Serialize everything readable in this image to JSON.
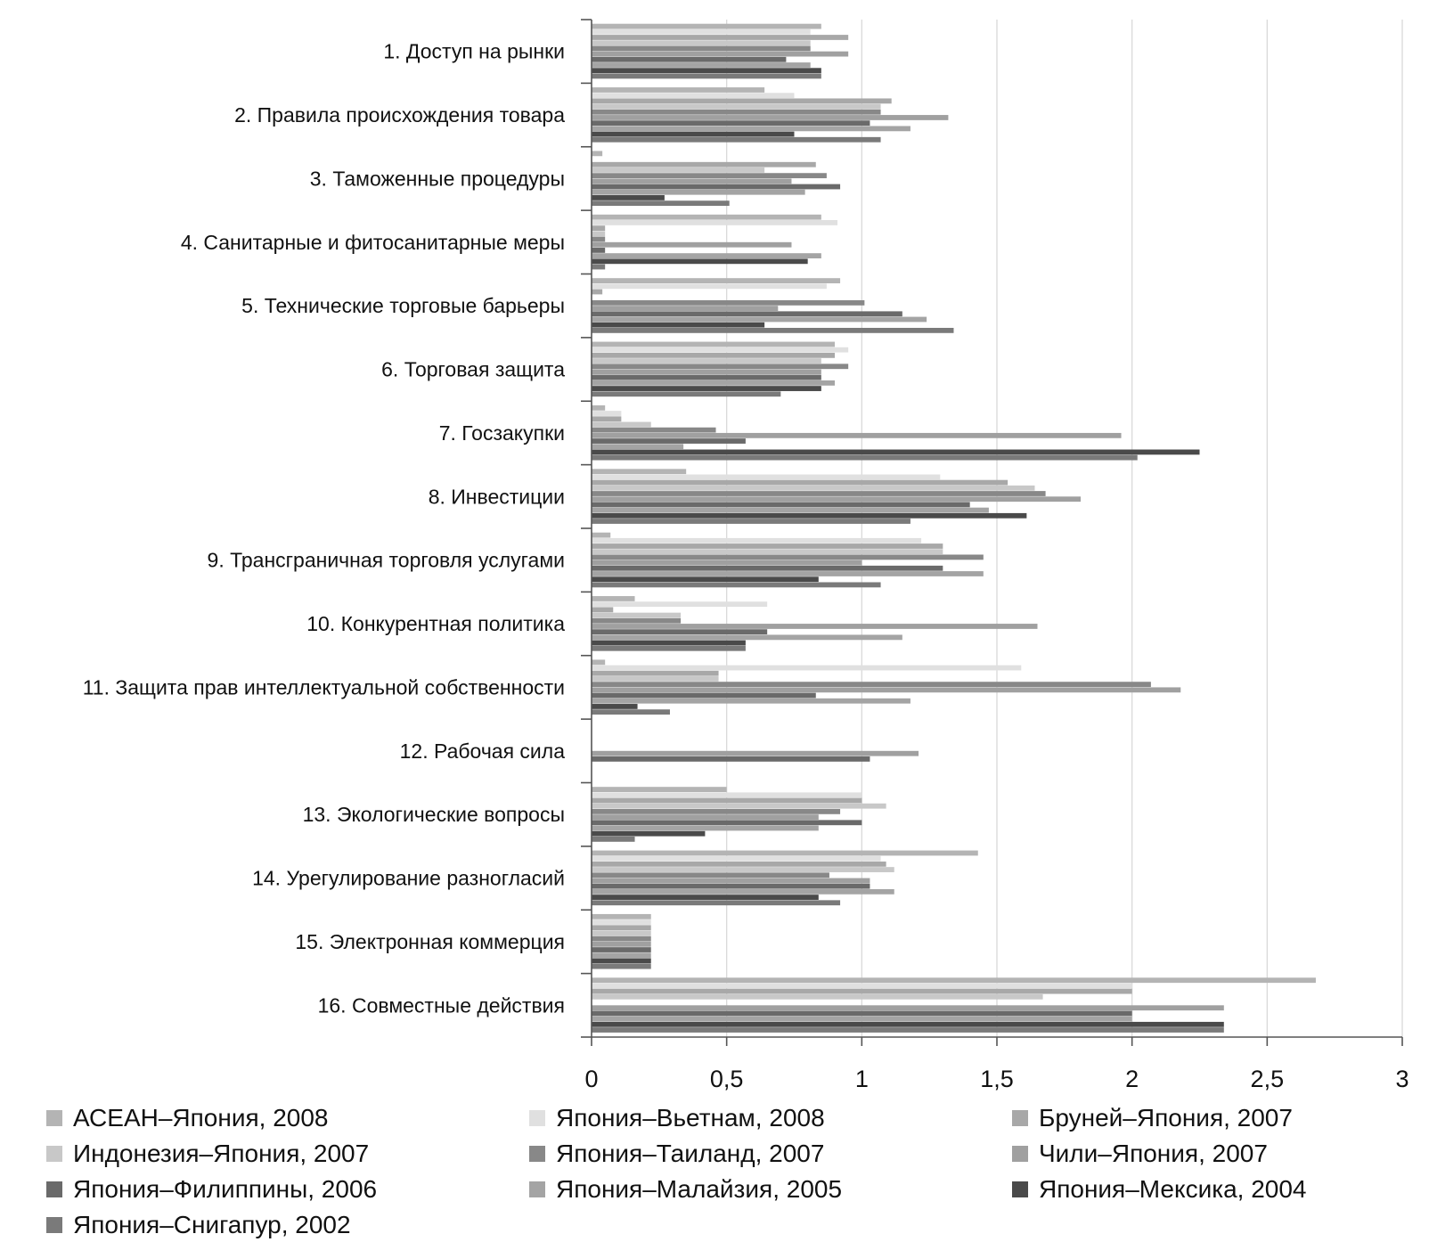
{
  "chart_data": {
    "type": "bar",
    "orientation": "horizontal",
    "title": "",
    "xlabel": "",
    "ylabel": "",
    "xlim": [
      0,
      3
    ],
    "x_ticks": [
      "0",
      "0,5",
      "1",
      "1,5",
      "2",
      "2,5",
      "3"
    ],
    "x_tick_values": [
      0,
      0.5,
      1,
      1.5,
      2,
      2.5,
      3
    ],
    "grid": "vertical",
    "legend_position": "bottom",
    "categories": [
      "1. Доступ на рынки",
      "2. Правила происхождения товара",
      "3. Таможенные процедуры",
      "4. Санитарные и фитосанитарные меры",
      "5. Технические торговые барьеры",
      "6. Торговая защита",
      "7. Госзакупки",
      "8. Инвестиции",
      "9. Трансграничная торговля услугами",
      "10. Конкурентная политика",
      "11. Защита прав интеллектуальной собственности",
      "12. Рабочая сила",
      "13. Экологические вопросы",
      "14. Урегулирование разногласий",
      "15. Электронная коммерция",
      "16. Совместные действия"
    ],
    "series": [
      {
        "name": "АСЕАН–Япония, 2008",
        "color": "#b4b4b4",
        "values": [
          0.85,
          0.64,
          0.04,
          0.85,
          0.92,
          0.9,
          0.05,
          0.35,
          0.07,
          0.16,
          0.05,
          0,
          0.5,
          1.43,
          0.22,
          2.68
        ]
      },
      {
        "name": "Япония–Вьетнам, 2008",
        "color": "#e0e0e0",
        "values": [
          0.81,
          0.75,
          0,
          0.91,
          0.87,
          0.95,
          0.11,
          1.29,
          1.22,
          0.65,
          1.59,
          0,
          1.0,
          1.07,
          0.22,
          2.0
        ]
      },
      {
        "name": "Бруней–Япония, 2007",
        "color": "#a8a8a8",
        "values": [
          0.95,
          1.11,
          0.83,
          0.05,
          0.04,
          0.9,
          0.11,
          1.54,
          1.3,
          0.08,
          0.47,
          0,
          1.0,
          1.09,
          0.22,
          2.0
        ]
      },
      {
        "name": "Индонезия–Япония, 2007",
        "color": "#c8c8c8",
        "values": [
          0.81,
          1.07,
          0.64,
          0.05,
          0,
          0.85,
          0.22,
          1.64,
          1.3,
          0.33,
          0.47,
          0,
          1.09,
          1.12,
          0.22,
          1.67
        ]
      },
      {
        "name": "Япония–Таиланд, 2007",
        "color": "#888888",
        "values": [
          0.81,
          1.07,
          0.87,
          0.05,
          1.01,
          0.95,
          0.46,
          1.68,
          1.45,
          0.33,
          2.07,
          0,
          0.92,
          0.88,
          0.22,
          0
        ]
      },
      {
        "name": "Чили–Япония, 2007",
        "color": "#a0a0a0",
        "values": [
          0.95,
          1.32,
          0.74,
          0.74,
          0.69,
          0.85,
          1.96,
          1.81,
          1.0,
          1.65,
          2.18,
          1.21,
          0.84,
          1.03,
          0.22,
          2.34
        ]
      },
      {
        "name": "Япония–Филиппины, 2006",
        "color": "#6a6a6a",
        "values": [
          0.72,
          1.03,
          0.92,
          0.05,
          1.15,
          0.85,
          0.57,
          1.4,
          1.3,
          0.65,
          0.83,
          1.03,
          1.0,
          1.03,
          0.22,
          2.0
        ]
      },
      {
        "name": "Япония–Малайзия, 2005",
        "color": "#a4a4a4",
        "values": [
          0.81,
          1.18,
          0.79,
          0.85,
          1.24,
          0.9,
          0.34,
          1.47,
          1.45,
          1.15,
          1.18,
          0,
          0.84,
          1.12,
          0.22,
          2.0
        ]
      },
      {
        "name": "Япония–Мексика, 2004",
        "color": "#4a4a4a",
        "values": [
          0.85,
          0.75,
          0.27,
          0.8,
          0.64,
          0.85,
          2.25,
          1.61,
          0.84,
          0.57,
          0.17,
          0,
          0.42,
          0.84,
          0.22,
          2.34
        ]
      },
      {
        "name": "Япония–Снигапур, 2002",
        "color": "#7a7a7a",
        "values": [
          0.85,
          1.07,
          0.51,
          0.05,
          1.34,
          0.7,
          2.02,
          1.18,
          1.07,
          0.57,
          0.29,
          0,
          0.16,
          0.92,
          0.22,
          2.34
        ]
      }
    ]
  }
}
